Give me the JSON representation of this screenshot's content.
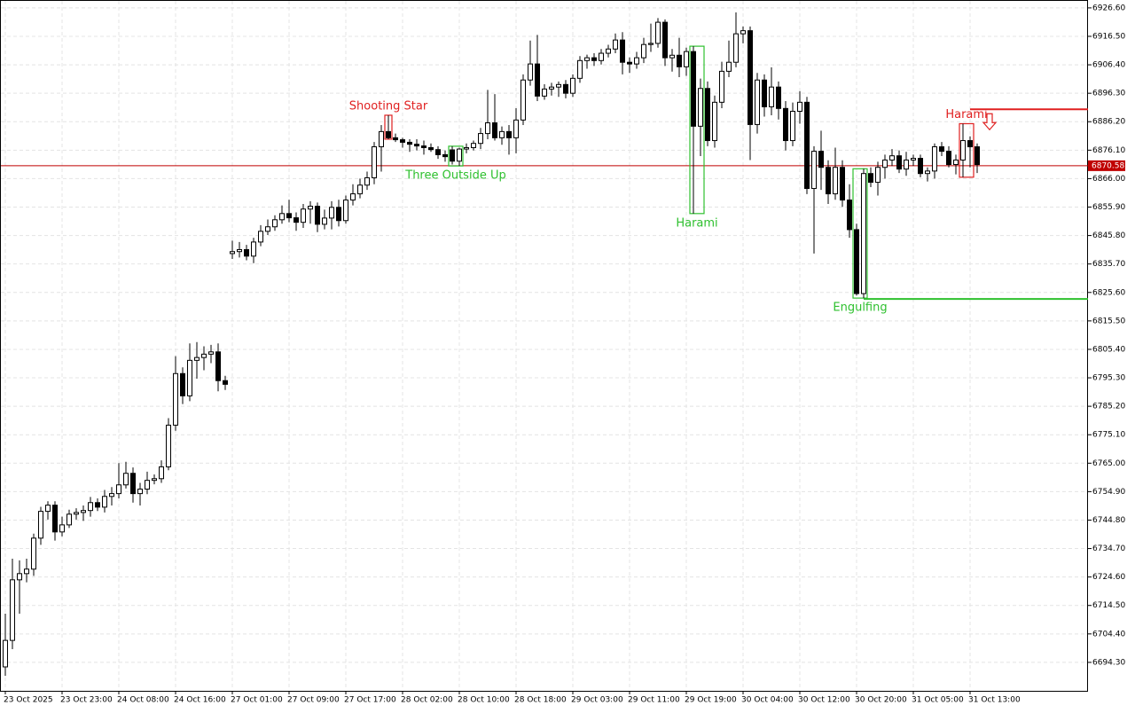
{
  "chart_data": {
    "type": "candlestick",
    "ylim": [
      6684.2,
      6929.4
    ],
    "yticks": [
      {
        "value": 6926.6,
        "label": "6926.60"
      },
      {
        "value": 6916.5,
        "label": "6916.50"
      },
      {
        "value": 6906.4,
        "label": "6906.40"
      },
      {
        "value": 6896.3,
        "label": "6896.30"
      },
      {
        "value": 6886.2,
        "label": "6886.20"
      },
      {
        "value": 6876.1,
        "label": "6876.10"
      },
      {
        "value": 6866,
        "label": "6866.00"
      },
      {
        "value": 6855.9,
        "label": "6855.90"
      },
      {
        "value": 6845.8,
        "label": "6845.80"
      },
      {
        "value": 6835.7,
        "label": "6835.70"
      },
      {
        "value": 6825.6,
        "label": "6825.60"
      },
      {
        "value": 6815.5,
        "label": "6815.50"
      },
      {
        "value": 6805.4,
        "label": "6805.40"
      },
      {
        "value": 6795.3,
        "label": "6795.30"
      },
      {
        "value": 6785.2,
        "label": "6785.20"
      },
      {
        "value": 6775.1,
        "label": "6775.10"
      },
      {
        "value": 6765,
        "label": "6765.00"
      },
      {
        "value": 6754.9,
        "label": "6754.90"
      },
      {
        "value": 6744.8,
        "label": "6744.80"
      },
      {
        "value": 6734.7,
        "label": "6734.70"
      },
      {
        "value": 6724.6,
        "label": "6724.60"
      },
      {
        "value": 6714.5,
        "label": "6714.50"
      },
      {
        "value": 6704.4,
        "label": "6704.40"
      },
      {
        "value": 6694.3,
        "label": "6694.30"
      }
    ],
    "grid": true,
    "up_color": "#ffffff",
    "down_color": "#000000",
    "categories": [
      "23 Oct 2025",
      null,
      null,
      null,
      null,
      null,
      null,
      null,
      "23 Oct 23:00",
      null,
      null,
      null,
      null,
      null,
      null,
      null,
      "24 Oct 08:00",
      null,
      null,
      null,
      null,
      null,
      null,
      null,
      "24 Oct 16:00",
      null,
      null,
      null,
      null,
      null,
      null,
      null,
      "27 Oct 01:00",
      null,
      null,
      null,
      null,
      null,
      null,
      null,
      "27 Oct 09:00",
      null,
      null,
      null,
      null,
      null,
      null,
      null,
      "27 Oct 17:00",
      null,
      null,
      null,
      null,
      null,
      null,
      null,
      "28 Oct 02:00",
      null,
      null,
      null,
      null,
      null,
      null,
      null,
      "28 Oct 10:00",
      null,
      null,
      null,
      null,
      null,
      null,
      null,
      "28 Oct 18:00",
      null,
      null,
      null,
      null,
      null,
      null,
      null,
      "29 Oct 03:00",
      null,
      null,
      null,
      null,
      null,
      null,
      null,
      "29 Oct 11:00",
      null,
      null,
      null,
      null,
      null,
      null,
      null,
      "29 Oct 19:00",
      null,
      null,
      null,
      null,
      null,
      null,
      null,
      "30 Oct 04:00",
      null,
      null,
      null,
      null,
      null,
      null,
      null,
      "30 Oct 12:00",
      null,
      null,
      null,
      null,
      null,
      null,
      null,
      "30 Oct 20:00",
      null,
      null,
      null,
      null,
      null,
      null,
      null,
      "31 Oct 05:00",
      null,
      null,
      null,
      null,
      null,
      null,
      null,
      "31 Oct 13:00",
      null
    ],
    "candles": [
      [
        6692.7,
        6711.6,
        6689.5,
        6702.1
      ],
      [
        6702.1,
        6731.1,
        6699.0,
        6723.6
      ],
      [
        6723.6,
        6730.5,
        6711.6,
        6725.8
      ],
      [
        6725.8,
        6731.1,
        6722.7,
        6727.4
      ],
      [
        6727.4,
        6740.0,
        6725.0,
        6738.4
      ],
      [
        6738.4,
        6749.5,
        6736.0,
        6747.9
      ],
      [
        6747.9,
        6751.5,
        6745.0,
        6750.1
      ],
      [
        6750.1,
        6751.5,
        6737.5,
        6740.6
      ],
      [
        6740.6,
        6746.0,
        6739.0,
        6743.1
      ],
      [
        6743.1,
        6748.5,
        6742.0,
        6746.9
      ],
      [
        6746.9,
        6749.0,
        6745.0,
        6747.5
      ],
      [
        6747.5,
        6750.0,
        6744.5,
        6748.2
      ],
      [
        6748.2,
        6753.0,
        6746.0,
        6751.0
      ],
      [
        6751.0,
        6752.5,
        6748.0,
        6749.4
      ],
      [
        6749.4,
        6755.5,
        6747.5,
        6753.2
      ],
      [
        6753.2,
        6756.5,
        6750.0,
        6754.2
      ],
      [
        6754.2,
        6765.0,
        6752.5,
        6757.3
      ],
      [
        6757.3,
        6765.5,
        6756.0,
        6761.4
      ],
      [
        6761.4,
        6763.5,
        6751.0,
        6754.2
      ],
      [
        6754.2,
        6758.0,
        6750.0,
        6755.8
      ],
      [
        6755.8,
        6762.0,
        6754.0,
        6758.9
      ],
      [
        6758.9,
        6761.0,
        6757.5,
        6759.5
      ],
      [
        6759.5,
        6766.0,
        6758.0,
        6763.7
      ],
      [
        6763.7,
        6781.0,
        6762.5,
        6778.5
      ],
      [
        6778.5,
        6803.0,
        6776.5,
        6796.8
      ],
      [
        6796.8,
        6799.0,
        6786.0,
        6788.9
      ],
      [
        6788.9,
        6807.5,
        6787.0,
        6801.5
      ],
      [
        6801.5,
        6808.0,
        6795.0,
        6802.5
      ],
      [
        6802.5,
        6806.5,
        6798.0,
        6803.7
      ],
      [
        6803.7,
        6807.0,
        6800.5,
        6804.5
      ],
      [
        6804.5,
        6807.5,
        6790.5,
        6794.3
      ],
      [
        6794.3,
        6796.0,
        6791.0,
        6793.0
      ],
      [
        6839.4,
        6844.0,
        6837.5,
        6840.1
      ],
      [
        6840.1,
        6843.5,
        6838.0,
        6840.8
      ],
      [
        6840.8,
        6842.5,
        6837.0,
        6838.5
      ],
      [
        6838.5,
        6845.0,
        6836.0,
        6843.5
      ],
      [
        6843.5,
        6849.5,
        6842.0,
        6847.3
      ],
      [
        6847.3,
        6851.5,
        6846.0,
        6848.9
      ],
      [
        6848.9,
        6853.0,
        6847.5,
        6851.4
      ],
      [
        6851.4,
        6856.5,
        6850.0,
        6853.6
      ],
      [
        6853.6,
        6858.5,
        6850.5,
        6852.1
      ],
      [
        6852.1,
        6854.0,
        6847.5,
        6850.5
      ],
      [
        6850.5,
        6857.0,
        6848.5,
        6855.2
      ],
      [
        6855.2,
        6858.0,
        6850.0,
        6856.2
      ],
      [
        6856.2,
        6857.5,
        6847.0,
        6849.8
      ],
      [
        6849.8,
        6855.0,
        6848.0,
        6852.0
      ],
      [
        6852.0,
        6858.0,
        6848.0,
        6855.8
      ],
      [
        6855.8,
        6858.5,
        6849.0,
        6851.1
      ],
      [
        6851.1,
        6860.0,
        6850.0,
        6858.4
      ],
      [
        6858.4,
        6864.0,
        6856.5,
        6860.6
      ],
      [
        6860.6,
        6866.0,
        6859.0,
        6863.7
      ],
      [
        6863.7,
        6868.5,
        6862.0,
        6866.3
      ],
      [
        6866.3,
        6879.0,
        6864.0,
        6877.3
      ],
      [
        6877.3,
        6885.0,
        6868.5,
        6882.7
      ],
      [
        6882.7,
        6888.5,
        6880.0,
        6880.5
      ],
      [
        6880.5,
        6882.0,
        6879.0,
        6879.8
      ],
      [
        6879.8,
        6880.5,
        6877.0,
        6878.9
      ],
      [
        6878.9,
        6880.0,
        6875.5,
        6878.2
      ],
      [
        6878.2,
        6880.0,
        6876.0,
        6877.6
      ],
      [
        6877.6,
        6879.5,
        6874.5,
        6877.0
      ],
      [
        6877.0,
        6878.5,
        6875.5,
        6876.3
      ],
      [
        6876.3,
        6877.5,
        6873.0,
        6874.5
      ],
      [
        6874.5,
        6876.0,
        6872.0,
        6873.8
      ],
      [
        6876.2,
        6877.5,
        6871.0,
        6872.2
      ],
      [
        6872.2,
        6877.0,
        6870.5,
        6876.5
      ],
      [
        6876.5,
        6878.5,
        6875.0,
        6877.0
      ],
      [
        6877.0,
        6879.5,
        6876.0,
        6878.5
      ],
      [
        6878.5,
        6884.0,
        6876.5,
        6882.0
      ],
      [
        6882.0,
        6897.5,
        6880.0,
        6885.8
      ],
      [
        6885.8,
        6896.0,
        6879.5,
        6880.5
      ],
      [
        6880.5,
        6884.5,
        6878.0,
        6882.7
      ],
      [
        6882.7,
        6885.0,
        6874.5,
        6880.5
      ],
      [
        6880.5,
        6891.0,
        6875.0,
        6886.8
      ],
      [
        6886.8,
        6903.0,
        6885.0,
        6901.0
      ],
      [
        6901.0,
        6915.0,
        6899.0,
        6906.7
      ],
      [
        6906.7,
        6917.0,
        6893.5,
        6895.3
      ],
      [
        6895.3,
        6899.5,
        6894.0,
        6897.8
      ],
      [
        6897.8,
        6900.0,
        6895.5,
        6898.5
      ],
      [
        6898.5,
        6900.5,
        6895.0,
        6899.4
      ],
      [
        6899.4,
        6901.0,
        6894.5,
        6896.3
      ],
      [
        6896.3,
        6903.0,
        6895.0,
        6901.6
      ],
      [
        6901.6,
        6909.5,
        6900.0,
        6907.9
      ],
      [
        6907.9,
        6910.0,
        6905.0,
        6908.9
      ],
      [
        6908.9,
        6910.5,
        6906.0,
        6907.9
      ],
      [
        6907.9,
        6912.0,
        6906.5,
        6910.5
      ],
      [
        6910.5,
        6913.5,
        6909.0,
        6912.0
      ],
      [
        6912.0,
        6917.5,
        6910.5,
        6915.2
      ],
      [
        6915.2,
        6918.0,
        6903.0,
        6907.3
      ],
      [
        6907.3,
        6909.0,
        6903.5,
        6906.7
      ],
      [
        6906.7,
        6911.0,
        6905.0,
        6908.9
      ],
      [
        6908.9,
        6916.0,
        6907.0,
        6913.6
      ],
      [
        6913.6,
        6921.0,
        6911.0,
        6914.0
      ],
      [
        6914.0,
        6923.0,
        6912.5,
        6921.5
      ],
      [
        6921.5,
        6922.5,
        6906.0,
        6908.9
      ],
      [
        6908.9,
        6912.0,
        6904.0,
        6909.8
      ],
      [
        6909.8,
        6916.0,
        6902.0,
        6905.7
      ],
      [
        6905.7,
        6912.5,
        6902.5,
        6911.1
      ],
      [
        6911.1,
        6913.0,
        6853.6,
        6884.6
      ],
      [
        6884.6,
        6901.5,
        6874.0,
        6898.0
      ],
      [
        6898.0,
        6900.5,
        6877.5,
        6879.5
      ],
      [
        6879.5,
        6895.5,
        6877.0,
        6893.1
      ],
      [
        6893.1,
        6907.5,
        6891.0,
        6904.1
      ],
      [
        6904.1,
        6915.0,
        6902.0,
        6907.3
      ],
      [
        6907.3,
        6925.0,
        6905.5,
        6917.4
      ],
      [
        6917.4,
        6920.0,
        6914.0,
        6918.5
      ],
      [
        6918.5,
        6920.0,
        6872.6,
        6885.2
      ],
      [
        6885.2,
        6903.5,
        6882.0,
        6901.0
      ],
      [
        6901.0,
        6903.0,
        6888.0,
        6891.5
      ],
      [
        6891.5,
        6905.5,
        6888.5,
        6898.5
      ],
      [
        6898.5,
        6900.5,
        6887.0,
        6890.9
      ],
      [
        6890.9,
        6893.5,
        6876.0,
        6879.5
      ],
      [
        6879.5,
        6893.0,
        6877.5,
        6889.9
      ],
      [
        6889.9,
        6897.0,
        6885.5,
        6893.1
      ],
      [
        6893.1,
        6895.0,
        6860.5,
        6862.5
      ],
      [
        6862.5,
        6877.5,
        6839.4,
        6875.7
      ],
      [
        6875.7,
        6883.0,
        6862.0,
        6870.0
      ],
      [
        6870.0,
        6872.5,
        6857.0,
        6860.6
      ],
      [
        6860.6,
        6877.0,
        6858.5,
        6870.0
      ],
      [
        6870.0,
        6872.5,
        6856.0,
        6858.4
      ],
      [
        6858.4,
        6864.0,
        6845.0,
        6847.9
      ],
      [
        6847.9,
        6850.0,
        6824.5,
        6825.2
      ],
      [
        6825.2,
        6869.5,
        6823.6,
        6867.8
      ],
      [
        6867.8,
        6870.0,
        6863.0,
        6864.7
      ],
      [
        6864.7,
        6872.0,
        6860.0,
        6870.0
      ],
      [
        6870.0,
        6874.5,
        6866.0,
        6872.6
      ],
      [
        6872.6,
        6876.5,
        6870.5,
        6874.1
      ],
      [
        6874.1,
        6876.0,
        6868.0,
        6869.4
      ],
      [
        6869.4,
        6875.5,
        6867.0,
        6872.6
      ],
      [
        6872.6,
        6874.5,
        6870.5,
        6873.2
      ],
      [
        6873.2,
        6874.5,
        6866.5,
        6867.8
      ],
      [
        6867.8,
        6870.0,
        6865.0,
        6868.7
      ],
      [
        6868.7,
        6878.5,
        6866.0,
        6877.3
      ],
      [
        6877.3,
        6879.0,
        6874.0,
        6875.7
      ],
      [
        6875.7,
        6877.5,
        6870.0,
        6871.0
      ],
      [
        6871.0,
        6874.5,
        6867.5,
        6872.6
      ],
      [
        6872.6,
        6885.5,
        6866.5,
        6879.5
      ],
      [
        6879.5,
        6881.0,
        6870.0,
        6877.3
      ],
      [
        6877.3,
        6878.5,
        6868.0,
        6871.0
      ]
    ],
    "current_price": {
      "value": 6870.58,
      "label": "6870.58"
    },
    "price_color": "#c00000",
    "patterns": [
      {
        "label": "Shooting Star",
        "color": "#e02020",
        "candles": [
          54,
          54
        ],
        "bearish": true
      },
      {
        "label": "Three Outside Up",
        "color": "#2ec02e",
        "candles": [
          63,
          64
        ],
        "bearish": false
      },
      {
        "label": "Harami",
        "color": "#2ec02e",
        "candles": [
          97,
          98
        ],
        "bearish": false
      },
      {
        "label": "Engulfing",
        "color": "#2ec02e",
        "candles": [
          120,
          121
        ],
        "bearish": false,
        "level": 6823.3
      },
      {
        "label": "Harami",
        "color": "#e02020",
        "candles": [
          135,
          136
        ],
        "bearish": true,
        "level": 6890.6
      }
    ]
  }
}
